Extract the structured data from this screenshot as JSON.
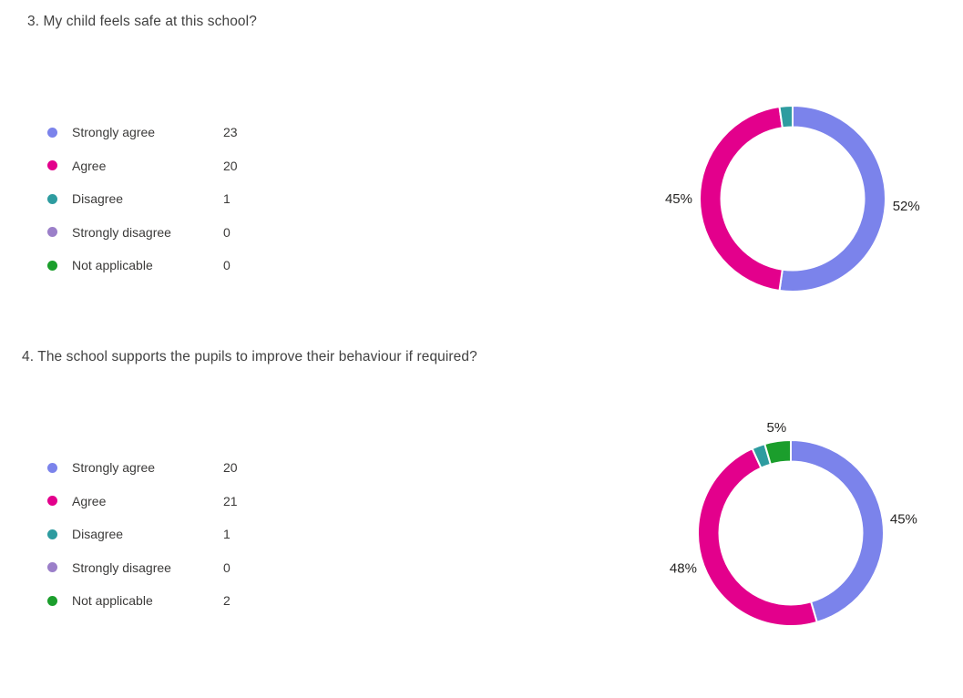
{
  "page": {
    "background": "#ffffff"
  },
  "palette": {
    "strongly_agree": "#7B83EB",
    "agree": "#E3008C",
    "disagree": "#2E9CA0",
    "strongly_disagree": "#9B7FC9",
    "not_applicable": "#1B9E2C"
  },
  "chart_data": [
    {
      "type": "donut",
      "title": "3. My child feels safe at this school?",
      "categories": [
        "Strongly agree",
        "Agree",
        "Disagree",
        "Strongly disagree",
        "Not applicable"
      ],
      "values": [
        23,
        20,
        1,
        0,
        0
      ],
      "percent_labels": [
        "52%",
        "45%",
        "",
        "",
        ""
      ],
      "colors": [
        "#7B83EB",
        "#E3008C",
        "#2E9CA0",
        "#9B7FC9",
        "#1B9E2C"
      ],
      "start_angle_deg": 0,
      "direction": "clockwise",
      "legend_position": "left",
      "labels_position": "outside"
    },
    {
      "type": "donut",
      "title": "4. The school supports the pupils to improve their behaviour if required?",
      "categories": [
        "Strongly agree",
        "Agree",
        "Disagree",
        "Strongly disagree",
        "Not applicable"
      ],
      "values": [
        20,
        21,
        1,
        0,
        2
      ],
      "percent_labels": [
        "45%",
        "48%",
        "",
        "",
        "5%"
      ],
      "colors": [
        "#7B83EB",
        "#E3008C",
        "#2E9CA0",
        "#9B7FC9",
        "#1B9E2C"
      ],
      "start_angle_deg": 0,
      "direction": "clockwise",
      "legend_position": "left",
      "labels_position": "outside"
    }
  ]
}
